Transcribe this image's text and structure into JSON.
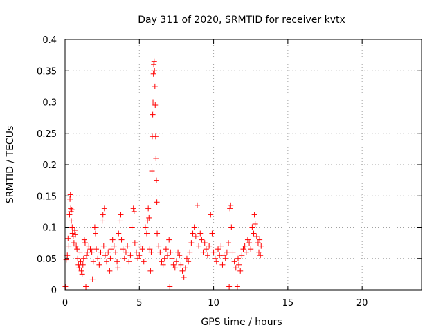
{
  "chart_data": {
    "type": "scatter",
    "title": "Day 311 of 2020, SRMTID for receiver kvtx",
    "xlabel": "GPS time / hours",
    "ylabel": "SRMTID / TECUs",
    "xlim": [
      0,
      24
    ],
    "ylim": [
      0,
      0.4
    ],
    "x_ticks": [
      0,
      5,
      10,
      15,
      20
    ],
    "y_ticks": [
      0,
      0.05,
      0.1,
      0.15,
      0.2,
      0.25,
      0.3,
      0.35,
      0.4
    ],
    "grid": true,
    "marker": "+",
    "series_color": "#ff0000",
    "series": [
      {
        "name": "SRMTID",
        "points": [
          [
            0.02,
            0.005
          ],
          [
            0.08,
            0.048
          ],
          [
            0.15,
            0.055
          ],
          [
            0.2,
            0.082
          ],
          [
            0.25,
            0.07
          ],
          [
            0.3,
            0.12
          ],
          [
            0.33,
            0.145
          ],
          [
            0.36,
            0.152
          ],
          [
            0.38,
            0.13
          ],
          [
            0.4,
            0.125
          ],
          [
            0.42,
            0.11
          ],
          [
            0.45,
            0.128
          ],
          [
            0.48,
            0.1
          ],
          [
            0.5,
            0.09
          ],
          [
            0.55,
            0.085
          ],
          [
            0.6,
            0.075
          ],
          [
            0.65,
            0.095
          ],
          [
            0.7,
            0.088
          ],
          [
            0.75,
            0.07
          ],
          [
            0.8,
            0.065
          ],
          [
            0.85,
            0.05
          ],
          [
            0.9,
            0.04
          ],
          [
            0.95,
            0.035
          ],
          [
            1.0,
            0.06
          ],
          [
            1.05,
            0.045
          ],
          [
            1.1,
            0.03
          ],
          [
            1.15,
            0.025
          ],
          [
            1.2,
            0.04
          ],
          [
            1.25,
            0.05
          ],
          [
            1.3,
            0.08
          ],
          [
            1.35,
            0.075
          ],
          [
            1.4,
            0.005
          ],
          [
            1.45,
            0.055
          ],
          [
            1.5,
            0.06
          ],
          [
            1.6,
            0.07
          ],
          [
            1.7,
            0.065
          ],
          [
            1.8,
            0.06
          ],
          [
            1.85,
            0.017
          ],
          [
            1.9,
            0.045
          ],
          [
            2.0,
            0.1
          ],
          [
            2.05,
            0.09
          ],
          [
            2.1,
            0.065
          ],
          [
            2.2,
            0.05
          ],
          [
            2.3,
            0.04
          ],
          [
            2.4,
            0.06
          ],
          [
            2.5,
            0.11
          ],
          [
            2.55,
            0.12
          ],
          [
            2.6,
            0.07
          ],
          [
            2.65,
            0.13
          ],
          [
            2.7,
            0.055
          ],
          [
            2.8,
            0.045
          ],
          [
            2.9,
            0.06
          ],
          [
            3.0,
            0.03
          ],
          [
            3.05,
            0.05
          ],
          [
            3.1,
            0.065
          ],
          [
            3.2,
            0.08
          ],
          [
            3.3,
            0.07
          ],
          [
            3.4,
            0.06
          ],
          [
            3.5,
            0.045
          ],
          [
            3.55,
            0.035
          ],
          [
            3.6,
            0.09
          ],
          [
            3.7,
            0.11
          ],
          [
            3.75,
            0.12
          ],
          [
            3.8,
            0.08
          ],
          [
            3.9,
            0.065
          ],
          [
            4.0,
            0.05
          ],
          [
            4.1,
            0.06
          ],
          [
            4.2,
            0.07
          ],
          [
            4.3,
            0.045
          ],
          [
            4.4,
            0.055
          ],
          [
            4.5,
            0.1
          ],
          [
            4.6,
            0.13
          ],
          [
            4.65,
            0.125
          ],
          [
            4.7,
            0.075
          ],
          [
            4.8,
            0.06
          ],
          [
            4.9,
            0.05
          ],
          [
            5.0,
            0.055
          ],
          [
            5.1,
            0.07
          ],
          [
            5.2,
            0.065
          ],
          [
            5.3,
            0.045
          ],
          [
            5.4,
            0.1
          ],
          [
            5.5,
            0.09
          ],
          [
            5.55,
            0.11
          ],
          [
            5.6,
            0.13
          ],
          [
            5.65,
            0.115
          ],
          [
            5.7,
            0.065
          ],
          [
            5.75,
            0.03
          ],
          [
            5.8,
            0.06
          ],
          [
            5.85,
            0.19
          ],
          [
            5.87,
            0.245
          ],
          [
            5.9,
            0.28
          ],
          [
            5.92,
            0.3
          ],
          [
            5.95,
            0.345
          ],
          [
            5.97,
            0.36
          ],
          [
            6.0,
            0.365
          ],
          [
            6.02,
            0.35
          ],
          [
            6.05,
            0.325
          ],
          [
            6.07,
            0.295
          ],
          [
            6.1,
            0.245
          ],
          [
            6.12,
            0.21
          ],
          [
            6.15,
            0.175
          ],
          [
            6.18,
            0.14
          ],
          [
            6.2,
            0.09
          ],
          [
            6.3,
            0.07
          ],
          [
            6.4,
            0.06
          ],
          [
            6.5,
            0.045
          ],
          [
            6.6,
            0.04
          ],
          [
            6.7,
            0.05
          ],
          [
            6.8,
            0.065
          ],
          [
            6.9,
            0.055
          ],
          [
            7.0,
            0.08
          ],
          [
            7.05,
            0.005
          ],
          [
            7.1,
            0.06
          ],
          [
            7.2,
            0.05
          ],
          [
            7.3,
            0.04
          ],
          [
            7.4,
            0.035
          ],
          [
            7.5,
            0.045
          ],
          [
            7.6,
            0.06
          ],
          [
            7.7,
            0.055
          ],
          [
            7.8,
            0.04
          ],
          [
            7.9,
            0.03
          ],
          [
            8.0,
            0.02
          ],
          [
            8.1,
            0.035
          ],
          [
            8.2,
            0.05
          ],
          [
            8.3,
            0.045
          ],
          [
            8.4,
            0.06
          ],
          [
            8.5,
            0.075
          ],
          [
            8.6,
            0.09
          ],
          [
            8.7,
            0.1
          ],
          [
            8.8,
            0.085
          ],
          [
            8.9,
            0.135
          ],
          [
            9.0,
            0.07
          ],
          [
            9.1,
            0.09
          ],
          [
            9.2,
            0.08
          ],
          [
            9.3,
            0.06
          ],
          [
            9.4,
            0.075
          ],
          [
            9.5,
            0.065
          ],
          [
            9.6,
            0.055
          ],
          [
            9.7,
            0.07
          ],
          [
            9.8,
            0.12
          ],
          [
            9.9,
            0.09
          ],
          [
            10.0,
            0.06
          ],
          [
            10.1,
            0.05
          ],
          [
            10.2,
            0.045
          ],
          [
            10.3,
            0.065
          ],
          [
            10.4,
            0.055
          ],
          [
            10.5,
            0.07
          ],
          [
            10.6,
            0.04
          ],
          [
            10.7,
            0.055
          ],
          [
            10.8,
            0.05
          ],
          [
            10.9,
            0.06
          ],
          [
            11.0,
            0.075
          ],
          [
            11.05,
            0.005
          ],
          [
            11.1,
            0.13
          ],
          [
            11.15,
            0.135
          ],
          [
            11.2,
            0.1
          ],
          [
            11.3,
            0.06
          ],
          [
            11.4,
            0.045
          ],
          [
            11.5,
            0.035
          ],
          [
            11.6,
            0.005
          ],
          [
            11.65,
            0.05
          ],
          [
            11.7,
            0.04
          ],
          [
            11.8,
            0.03
          ],
          [
            11.9,
            0.055
          ],
          [
            12.0,
            0.065
          ],
          [
            12.1,
            0.07
          ],
          [
            12.2,
            0.06
          ],
          [
            12.3,
            0.08
          ],
          [
            12.4,
            0.075
          ],
          [
            12.5,
            0.065
          ],
          [
            12.6,
            0.1
          ],
          [
            12.7,
            0.09
          ],
          [
            12.75,
            0.12
          ],
          [
            12.8,
            0.105
          ],
          [
            12.9,
            0.085
          ],
          [
            13.0,
            0.075
          ],
          [
            13.05,
            0.06
          ],
          [
            13.1,
            0.08
          ],
          [
            13.15,
            0.055
          ],
          [
            13.2,
            0.07
          ]
        ]
      }
    ]
  }
}
